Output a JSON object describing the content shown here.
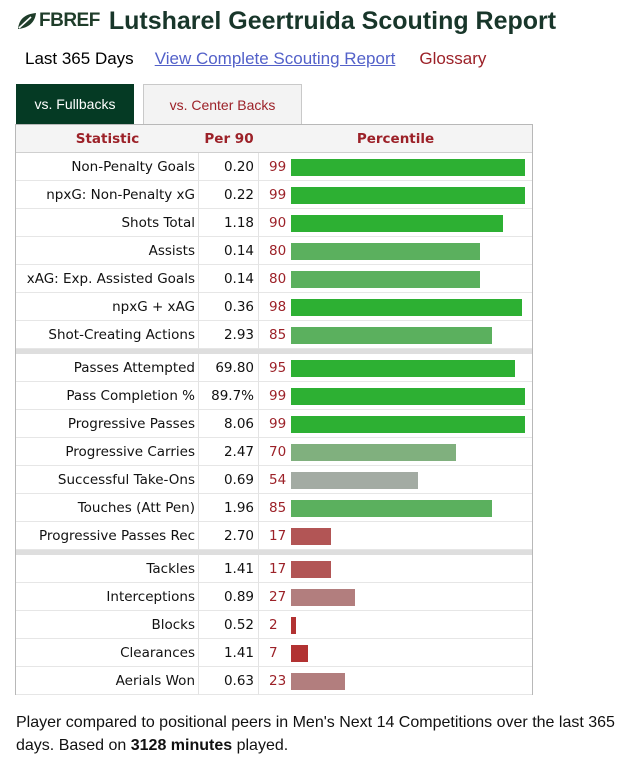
{
  "header": {
    "logo_text": "FBREF",
    "logo_icon": "leaf-logo-icon",
    "title": "Lutsharel Geertruida Scouting Report"
  },
  "subnav": {
    "period": "Last 365 Days",
    "complete_link": "View Complete Scouting Report",
    "glossary_link": "Glossary"
  },
  "tabs": [
    {
      "label": "vs. Fullbacks",
      "active": true
    },
    {
      "label": "vs. Center Backs",
      "active": false
    }
  ],
  "table": {
    "headers": {
      "statistic": "Statistic",
      "per90": "Per 90",
      "percentile": "Percentile"
    },
    "colors": {
      "elite": "#2db033",
      "good": "#5bb05e",
      "average": "#80b07e",
      "neutral": "#a3aba3",
      "below": "#b27e7e",
      "poor": "#b25555",
      "worst": "#b23232"
    },
    "groups": [
      [
        {
          "stat": "Non-Penalty Goals",
          "per90": "0.20",
          "percentile": "99"
        },
        {
          "stat": "npxG: Non-Penalty xG",
          "per90": "0.22",
          "percentile": "99"
        },
        {
          "stat": "Shots Total",
          "per90": "1.18",
          "percentile": "90"
        },
        {
          "stat": "Assists",
          "per90": "0.14",
          "percentile": "80"
        },
        {
          "stat": "xAG: Exp. Assisted Goals",
          "per90": "0.14",
          "percentile": "80"
        },
        {
          "stat": "npxG + xAG",
          "per90": "0.36",
          "percentile": "98"
        },
        {
          "stat": "Shot-Creating Actions",
          "per90": "2.93",
          "percentile": "85"
        }
      ],
      [
        {
          "stat": "Passes Attempted",
          "per90": "69.80",
          "percentile": "95"
        },
        {
          "stat": "Pass Completion %",
          "per90": "89.7%",
          "percentile": "99"
        },
        {
          "stat": "Progressive Passes",
          "per90": "8.06",
          "percentile": "99"
        },
        {
          "stat": "Progressive Carries",
          "per90": "2.47",
          "percentile": "70"
        },
        {
          "stat": "Successful Take-Ons",
          "per90": "0.69",
          "percentile": "54"
        },
        {
          "stat": "Touches (Att Pen)",
          "per90": "1.96",
          "percentile": "85"
        },
        {
          "stat": "Progressive Passes Rec",
          "per90": "2.70",
          "percentile": "17"
        }
      ],
      [
        {
          "stat": "Tackles",
          "per90": "1.41",
          "percentile": "17"
        },
        {
          "stat": "Interceptions",
          "per90": "0.89",
          "percentile": "27"
        },
        {
          "stat": "Blocks",
          "per90": "0.52",
          "percentile": "2"
        },
        {
          "stat": "Clearances",
          "per90": "1.41",
          "percentile": "7"
        },
        {
          "stat": "Aerials Won",
          "per90": "0.63",
          "percentile": "23"
        }
      ]
    ]
  },
  "footnote": {
    "prefix": "Player compared to positional peers in Men's Next 14 Competitions over the last 365 days. Based on ",
    "minutes": "3128 minutes",
    "suffix": " played."
  }
}
